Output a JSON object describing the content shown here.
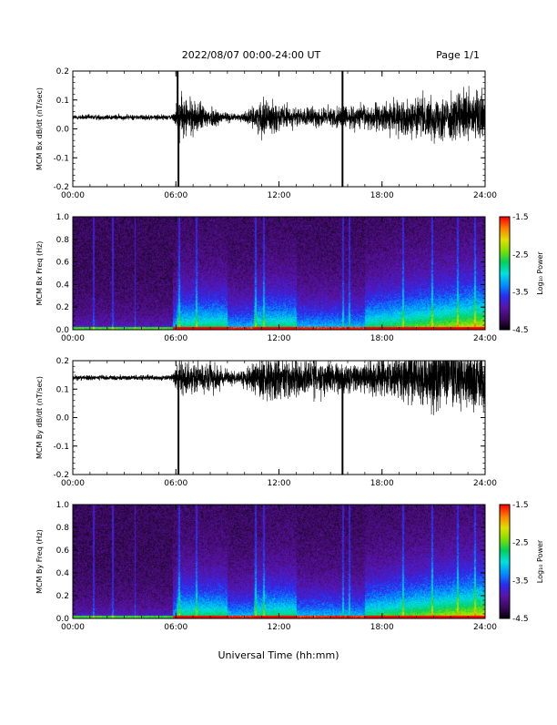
{
  "header": {
    "date_range": "2022/08/07  00:00-24:00 UT",
    "page": "Page 1/1"
  },
  "footer": {
    "xlabel": "Universal Time (hh:mm)"
  },
  "colors": {
    "trace": "#000000",
    "background": "#ffffff"
  },
  "colorbar": {
    "label": "Log₁₀ Power",
    "ticks": [
      "-1.5",
      "-2.5",
      "-3.5",
      "-4.5"
    ],
    "range": [
      -4.5,
      -1.5
    ],
    "colormap": [
      "#000000",
      "#3b0a5e",
      "#5a14a8",
      "#2b2bf0",
      "#0090ff",
      "#00e0e0",
      "#00d060",
      "#7fe000",
      "#e0e000",
      "#ff8000",
      "#ff0000"
    ]
  },
  "chart_data": [
    {
      "type": "line",
      "name": "bx-dbdt",
      "ylabel": "MCM Bx dB/dt (nT/sec)",
      "x_ticks": [
        "00:00",
        "06:00",
        "12:00",
        "18:00",
        "24:00"
      ],
      "y_ticks": [
        "0.2",
        "0.1",
        "0.0",
        "-0.1",
        "-0.2"
      ],
      "xlim": [
        0,
        24
      ],
      "ylim": [
        -0.2,
        0.2
      ],
      "baseline": 0.04,
      "activity_envelope": [
        {
          "t": 0,
          "amp": 0.015
        },
        {
          "t": 5.8,
          "amp": 0.015
        },
        {
          "t": 6.2,
          "amp": 0.12
        },
        {
          "t": 8,
          "amp": 0.06
        },
        {
          "t": 9.5,
          "amp": 0.015
        },
        {
          "t": 10.5,
          "amp": 0.05
        },
        {
          "t": 11,
          "amp": 0.1
        },
        {
          "t": 13,
          "amp": 0.05
        },
        {
          "t": 16,
          "amp": 0.06
        },
        {
          "t": 19,
          "amp": 0.09
        },
        {
          "t": 21,
          "amp": 0.12
        },
        {
          "t": 24,
          "amp": 0.15
        }
      ],
      "spikes": [
        {
          "t": 6.15,
          "y": -0.2
        },
        {
          "t": 15.7,
          "y": -0.2
        },
        {
          "t": 15.7,
          "y": 0.2
        },
        {
          "t": 6.1,
          "y": 0.2
        }
      ]
    },
    {
      "type": "heatmap",
      "name": "bx-spectrogram",
      "ylabel": "MCM Bx Freq (Hz)",
      "x_ticks": [
        "00:00",
        "06:00",
        "12:00",
        "18:00",
        "24:00"
      ],
      "y_ticks": [
        "1.0",
        "0.8",
        "0.6",
        "0.4",
        "0.2",
        "0.0"
      ],
      "xlim": [
        0,
        24
      ],
      "ylim": [
        0,
        1.0
      ],
      "zlim": [
        -4.5,
        -1.5
      ]
    },
    {
      "type": "line",
      "name": "by-dbdt",
      "ylabel": "MCM By dB/dt (nT/sec)",
      "x_ticks": [
        "00:00",
        "06:00",
        "12:00",
        "18:00",
        "24:00"
      ],
      "y_ticks": [
        "0.2",
        "0.1",
        "0.0",
        "-0.1",
        "-0.2"
      ],
      "xlim": [
        0,
        24
      ],
      "ylim": [
        -0.2,
        0.2
      ],
      "baseline": 0.14,
      "activity_envelope": [
        {
          "t": 0,
          "amp": 0.015
        },
        {
          "t": 5.8,
          "amp": 0.015
        },
        {
          "t": 6.2,
          "amp": 0.1
        },
        {
          "t": 8,
          "amp": 0.08
        },
        {
          "t": 9.5,
          "amp": 0.03
        },
        {
          "t": 10.5,
          "amp": 0.08
        },
        {
          "t": 11,
          "amp": 0.12
        },
        {
          "t": 14,
          "amp": 0.1
        },
        {
          "t": 17,
          "amp": 0.09
        },
        {
          "t": 20,
          "amp": 0.15
        },
        {
          "t": 22,
          "amp": 0.2
        },
        {
          "t": 24,
          "amp": 0.18
        }
      ],
      "spikes": [
        {
          "t": 6.15,
          "y": -0.2
        },
        {
          "t": 15.7,
          "y": -0.2
        }
      ]
    },
    {
      "type": "heatmap",
      "name": "by-spectrogram",
      "ylabel": "MCM By Freq (Hz)",
      "x_ticks": [
        "00:00",
        "06:00",
        "12:00",
        "18:00",
        "24:00"
      ],
      "y_ticks": [
        "1.0",
        "0.8",
        "0.6",
        "0.4",
        "0.2",
        "0.0"
      ],
      "xlim": [
        0,
        24
      ],
      "ylim": [
        0,
        1.0
      ],
      "zlim": [
        -4.5,
        -1.5
      ]
    }
  ]
}
